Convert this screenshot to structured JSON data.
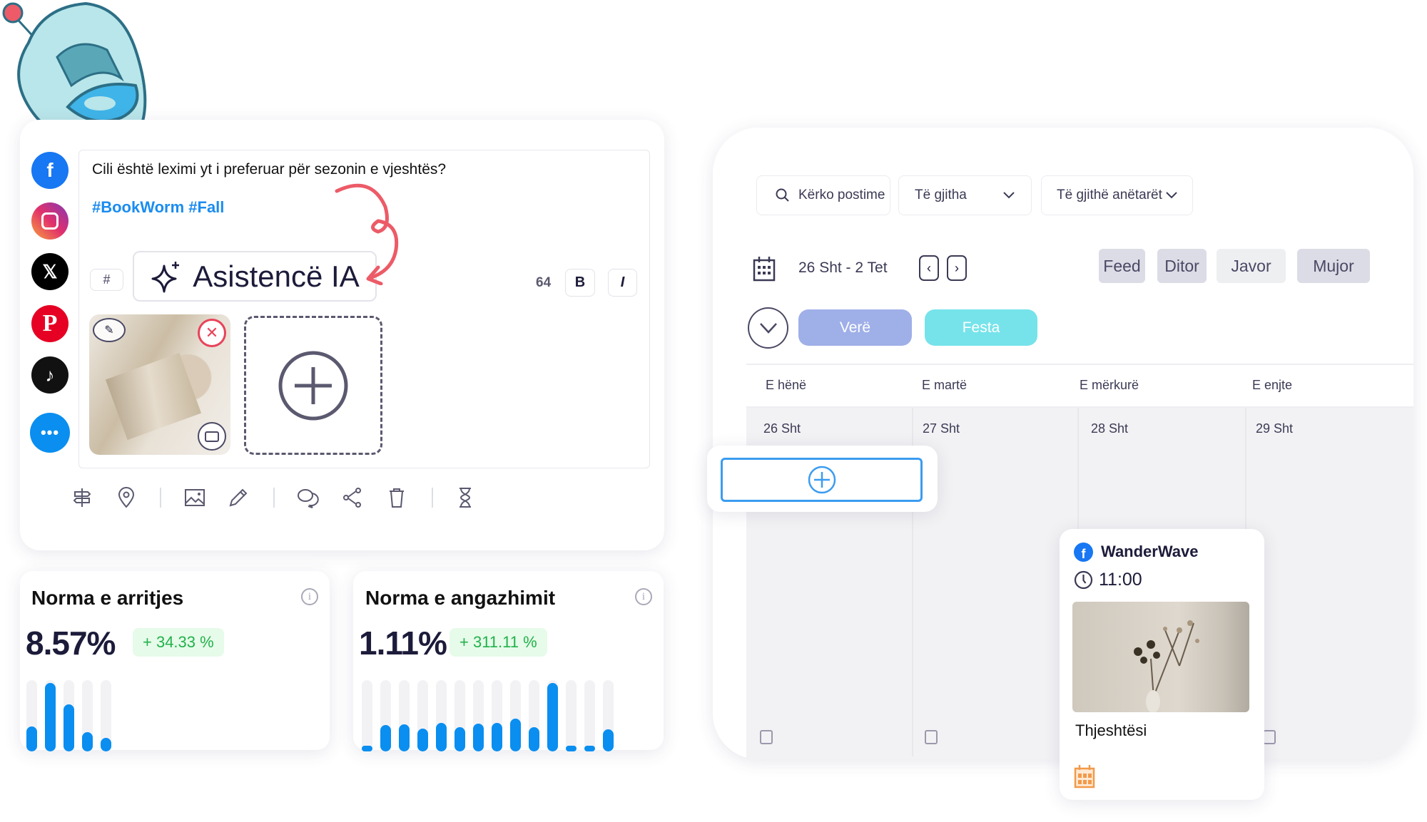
{
  "composer": {
    "post_text": "Cili është leximi yt i preferuar për sezonin e vjeshtës?",
    "hashtags": "#BookWorm #Fall",
    "hashtag_button": "#",
    "ai_button": "Asistencë IA",
    "char_count": "64",
    "bold_label": "B",
    "italic_label": "I",
    "social_networks": [
      "facebook",
      "instagram",
      "x",
      "pinterest",
      "tiktok",
      "more"
    ],
    "toolbar_icons": [
      "signpost-icon",
      "location-pin-icon",
      "image-icon",
      "pencil-icon",
      "comments-icon",
      "share-icon",
      "trash-icon",
      "hourglass-icon"
    ]
  },
  "stats": [
    {
      "title": "Norma e arritjes",
      "value": "8.57%",
      "change": "+ 34.33 %",
      "bars": [
        0.35,
        0.96,
        0.66,
        0.27,
        0.19
      ]
    },
    {
      "title": "Norma e angazhimit",
      "value": "1.11%",
      "change": "+ 311.11 %",
      "bars": [
        0.07,
        0.37,
        0.38,
        0.32,
        0.4,
        0.34,
        0.39,
        0.4,
        0.46,
        0.34,
        0.96,
        0.07,
        0.07,
        0.31
      ]
    }
  ],
  "calendar": {
    "search_placeholder": "Kërko postime",
    "filter_all": "Të gjitha",
    "filter_members": "Të gjithë anëtarët",
    "date_range": "26 Sht - 2 Tet",
    "views": [
      "Feed",
      "Ditor",
      "Javor",
      "Mujor"
    ],
    "active_view": "Javor",
    "tags": [
      {
        "label": "Verë",
        "color": "#9fafe8"
      },
      {
        "label": "Festa",
        "color": "#76e3ea"
      }
    ],
    "days": [
      "E hënë",
      "E martë",
      "E mërkurë",
      "E enjte"
    ],
    "dates": [
      "26 Sht",
      "27 Sht",
      "28 Sht",
      "29 Sht"
    ],
    "post": {
      "account": "WanderWave",
      "time": "11:00",
      "caption": "Thjeshtësi",
      "network": "facebook"
    }
  },
  "colors": {
    "accent": "#0a8ef0",
    "success": "#22b14c",
    "arrow": "#ec5b67"
  }
}
